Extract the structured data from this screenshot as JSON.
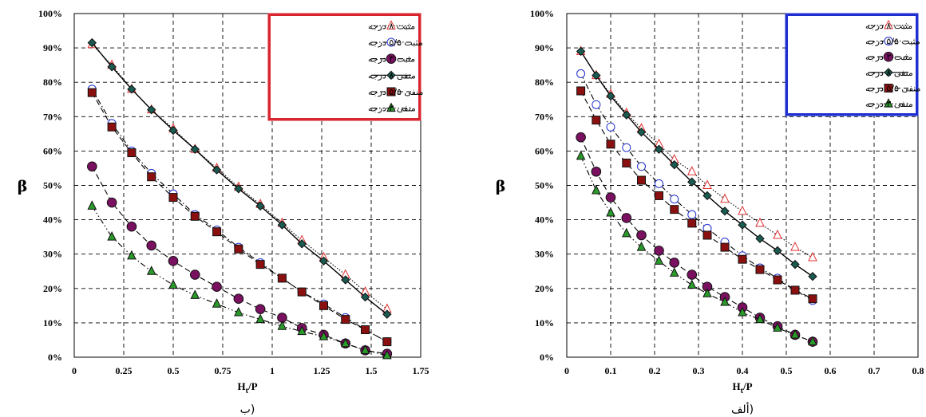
{
  "chart_data": [
    {
      "type": "line",
      "caption": "ب)",
      "ylabel": "β",
      "xlabel_main": "H",
      "xlabel_sub": "t",
      "xlabel_tail": "/P",
      "xlim": [
        0,
        1.75
      ],
      "ylim": [
        0,
        100
      ],
      "x_ticks": [
        "0",
        "0.25",
        "0.5",
        "0.75",
        "1",
        "1.25",
        "1.5",
        "1.75"
      ],
      "x_tick_values": [
        0,
        0.25,
        0.5,
        0.75,
        1,
        1.25,
        1.5,
        1.75
      ],
      "y_ticks": [
        "0%",
        "10%",
        "20%",
        "30%",
        "40%",
        "50%",
        "60%",
        "70%",
        "80%",
        "90%",
        "100%"
      ],
      "legend_frame_color": "#d9262e",
      "legend_position": "top-right",
      "series": [
        {
          "name": "مثبت ۸ درجه",
          "marker": "triangle-open",
          "line": "dotted",
          "color": "#e03030",
          "x": [
            0.09,
            0.19,
            0.29,
            0.39,
            0.5,
            0.61,
            0.72,
            0.83,
            0.94,
            1.05,
            1.15,
            1.26,
            1.37,
            1.47,
            1.58
          ],
          "y": [
            91,
            85,
            78,
            72,
            66.5,
            60.5,
            55,
            49.5,
            44.5,
            39,
            34,
            29,
            24,
            19,
            14
          ]
        },
        {
          "name": "مثبت ۵/۵ درجه",
          "marker": "circle-open",
          "line": "dashdot",
          "color": "#2030d0",
          "x": [
            0.09,
            0.19,
            0.29,
            0.39,
            0.5,
            0.61,
            0.72,
            0.83,
            0.94,
            1.05,
            1.15,
            1.26,
            1.37,
            1.47,
            1.58
          ],
          "y": [
            78,
            68,
            60,
            53.5,
            47.5,
            41.5,
            37,
            32,
            27.5,
            23,
            19,
            15.5,
            11.5,
            8,
            4.5
          ]
        },
        {
          "name": "مثبت ۳ درجه",
          "marker": "circle-filled",
          "line": "dashed",
          "color": "#7a1060",
          "x": [
            0.09,
            0.19,
            0.29,
            0.39,
            0.5,
            0.61,
            0.72,
            0.83,
            0.94,
            1.05,
            1.15,
            1.26,
            1.37,
            1.47,
            1.58
          ],
          "y": [
            55.5,
            45,
            38,
            32.5,
            28,
            24,
            20.5,
            17,
            14,
            11.5,
            8.5,
            6.5,
            4,
            2,
            1
          ]
        },
        {
          "name": "منفی ۸ درجه",
          "marker": "diamond-filled",
          "line": "solid",
          "color": "#1a5a50",
          "x": [
            0.09,
            0.19,
            0.29,
            0.39,
            0.5,
            0.61,
            0.72,
            0.83,
            0.94,
            1.05,
            1.15,
            1.26,
            1.37,
            1.47,
            1.58
          ],
          "y": [
            91.5,
            84.5,
            78,
            72,
            66,
            60.5,
            54.5,
            49,
            44,
            38.5,
            33,
            28,
            22.5,
            17.5,
            12.5
          ]
        },
        {
          "name": "منفی ۵/۵ درجه",
          "marker": "square-filled",
          "line": "dashed",
          "color": "#8a1010",
          "x": [
            0.09,
            0.19,
            0.29,
            0.39,
            0.5,
            0.61,
            0.72,
            0.83,
            0.94,
            1.05,
            1.15,
            1.26,
            1.37,
            1.47,
            1.58
          ],
          "y": [
            77,
            67,
            59.5,
            52.5,
            46.5,
            41,
            36.5,
            31.5,
            27,
            23,
            19,
            15,
            11,
            8,
            4.5
          ]
        },
        {
          "name": "منفی ۳ درجه",
          "marker": "triangle-filled",
          "line": "dashdotdot",
          "color": "#2a9a2a",
          "x": [
            0.09,
            0.19,
            0.29,
            0.39,
            0.5,
            0.61,
            0.72,
            0.83,
            0.94,
            1.05,
            1.15,
            1.26,
            1.37,
            1.47,
            1.58
          ],
          "y": [
            44,
            35,
            29.5,
            25,
            21,
            18,
            15.5,
            13,
            11,
            9,
            7.5,
            6,
            4,
            2,
            0.5
          ]
        }
      ]
    },
    {
      "type": "line",
      "caption": "ألف)",
      "ylabel": "β",
      "xlabel_main": "H",
      "xlabel_sub": "t",
      "xlabel_tail": "/P",
      "xlim": [
        0,
        0.8
      ],
      "ylim": [
        0,
        100
      ],
      "x_ticks": [
        "0",
        "0.1",
        "0.2",
        "0.3",
        "0.4",
        "0.5",
        "0.6",
        "0.7",
        "0.8"
      ],
      "x_tick_values": [
        0,
        0.1,
        0.2,
        0.3,
        0.4,
        0.5,
        0.6,
        0.7,
        0.8
      ],
      "y_ticks": [
        "0%",
        "10%",
        "20%",
        "30%",
        "40%",
        "50%",
        "60%",
        "70%",
        "80%",
        "90%",
        "100%"
      ],
      "legend_frame_color": "#2030d0",
      "legend_position": "top-right",
      "series": [
        {
          "name": "مثبت ۸ درجه",
          "marker": "triangle-open",
          "line": "dotted",
          "color": "#e03030",
          "x": [
            0.032,
            0.067,
            0.1,
            0.136,
            0.17,
            0.21,
            0.245,
            0.285,
            0.32,
            0.36,
            0.4,
            0.44,
            0.48,
            0.52,
            0.56
          ],
          "y": [
            89,
            82,
            76.5,
            71,
            66.5,
            62,
            57.5,
            54,
            50,
            46,
            42.5,
            39,
            35.5,
            32,
            29
          ]
        },
        {
          "name": "مثبت ۵/۵ درجه",
          "marker": "circle-open",
          "line": "dashdot",
          "color": "#2030d0",
          "x": [
            0.032,
            0.067,
            0.1,
            0.136,
            0.17,
            0.21,
            0.245,
            0.285,
            0.32,
            0.36,
            0.4,
            0.44,
            0.48,
            0.52,
            0.56
          ],
          "y": [
            82.5,
            73.5,
            67,
            61,
            55.5,
            50.5,
            46,
            41.5,
            37.5,
            33.5,
            29.5,
            26,
            23,
            19.5,
            16.5
          ]
        },
        {
          "name": "مثبت ۳ درجه",
          "marker": "circle-filled",
          "line": "dashed",
          "color": "#7a1060",
          "x": [
            0.032,
            0.067,
            0.1,
            0.136,
            0.17,
            0.21,
            0.245,
            0.285,
            0.32,
            0.36,
            0.4,
            0.44,
            0.48,
            0.52,
            0.56
          ],
          "y": [
            64,
            54,
            46.5,
            40.5,
            35.5,
            31,
            27.5,
            24,
            20.5,
            17.5,
            14.5,
            11.5,
            9,
            6.5,
            4.5
          ]
        },
        {
          "name": "منفی ۸ درجه",
          "marker": "diamond-filled",
          "line": "solid",
          "color": "#1a5a50",
          "x": [
            0.032,
            0.067,
            0.1,
            0.136,
            0.17,
            0.21,
            0.245,
            0.285,
            0.32,
            0.36,
            0.4,
            0.44,
            0.48,
            0.52,
            0.56
          ],
          "y": [
            89,
            82,
            76,
            70.5,
            65.5,
            60.5,
            56,
            51,
            47,
            42.5,
            38.5,
            34.5,
            31,
            27,
            23.5
          ]
        },
        {
          "name": "منفی ۵/۵ درجه",
          "marker": "square-filled",
          "line": "dashed",
          "color": "#8a1010",
          "x": [
            0.032,
            0.067,
            0.1,
            0.136,
            0.17,
            0.21,
            0.245,
            0.285,
            0.32,
            0.36,
            0.4,
            0.44,
            0.48,
            0.52,
            0.56
          ],
          "y": [
            77.5,
            69,
            62,
            56.5,
            51.5,
            47,
            43,
            39,
            35.5,
            32,
            28.5,
            25.5,
            22.5,
            19.5,
            17
          ]
        },
        {
          "name": "منفی ۳ درجه",
          "marker": "triangle-filled",
          "line": "dashdotdot",
          "color": "#2a9a2a",
          "x": [
            0.032,
            0.067,
            0.1,
            0.136,
            0.17,
            0.21,
            0.245,
            0.285,
            0.32,
            0.36,
            0.4,
            0.44,
            0.48,
            0.52,
            0.56
          ],
          "y": [
            58.5,
            48.5,
            42,
            36,
            32,
            28,
            24.5,
            21,
            18.5,
            16,
            13,
            11,
            8.5,
            6.5,
            4.5
          ]
        }
      ]
    }
  ]
}
